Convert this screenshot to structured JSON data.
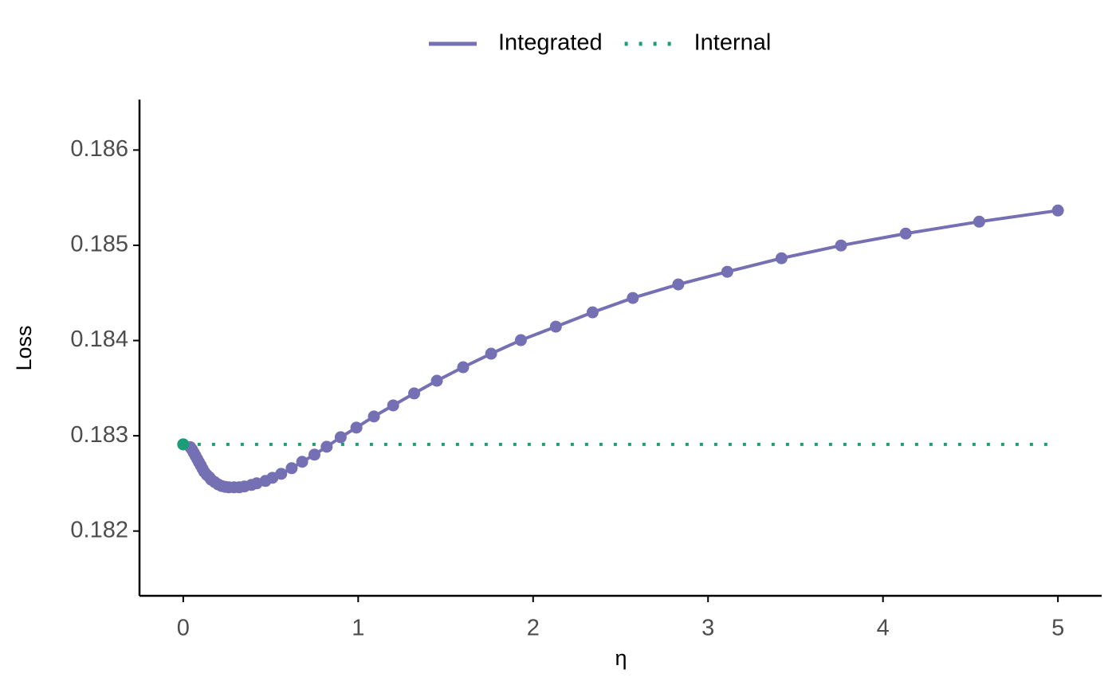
{
  "chart_data": {
    "type": "line",
    "x_label": "η",
    "y_label": "Loss",
    "xlim": [
      -0.25,
      5.25
    ],
    "xticks": [
      0,
      1,
      2,
      3,
      4,
      5
    ],
    "ylim": [
      0.18132,
      0.18653
    ],
    "yticks": [
      0.182,
      0.183,
      0.184,
      0.185,
      0.186
    ],
    "legend": "top",
    "series": [
      {
        "name": "Integrated",
        "color": "#7570b3",
        "style": "solid",
        "marker": "all",
        "x": [
          0,
          0.04,
          0.05,
          0.06,
          0.07,
          0.08,
          0.09,
          0.1,
          0.11,
          0.12,
          0.135,
          0.15,
          0.16,
          0.18,
          0.2,
          0.22,
          0.24,
          0.26,
          0.29,
          0.32,
          0.35,
          0.39,
          0.42,
          0.47,
          0.51,
          0.56,
          0.62,
          0.68,
          0.75,
          0.82,
          0.9,
          0.99,
          1.09,
          1.2,
          1.32,
          1.45,
          1.6,
          1.76,
          1.93,
          2.13,
          2.34,
          2.57,
          2.83,
          3.11,
          3.42,
          3.76,
          4.13,
          4.55,
          5
        ],
        "values": [
          0.18291,
          0.182881,
          0.182856,
          0.182823,
          0.18279,
          0.182756,
          0.182722,
          0.18269,
          0.182656,
          0.182622,
          0.182589,
          0.182564,
          0.182539,
          0.182514,
          0.182489,
          0.182472,
          0.182464,
          0.182459,
          0.182459,
          0.182459,
          0.182468,
          0.182484,
          0.182501,
          0.182526,
          0.182559,
          0.182601,
          0.18266,
          0.182727,
          0.182802,
          0.182885,
          0.182985,
          0.183086,
          0.183203,
          0.183319,
          0.183445,
          0.183578,
          0.18372,
          0.183862,
          0.184004,
          0.184146,
          0.184296,
          0.184447,
          0.184589,
          0.184722,
          0.184864,
          0.184998,
          0.185123,
          0.185248,
          0.185365
        ]
      },
      {
        "name": "Internal",
        "color": "#1b9e77",
        "style": "dotted",
        "marker": "first",
        "x": [
          0,
          5
        ],
        "values": [
          0.18291,
          0.18291
        ]
      }
    ]
  }
}
